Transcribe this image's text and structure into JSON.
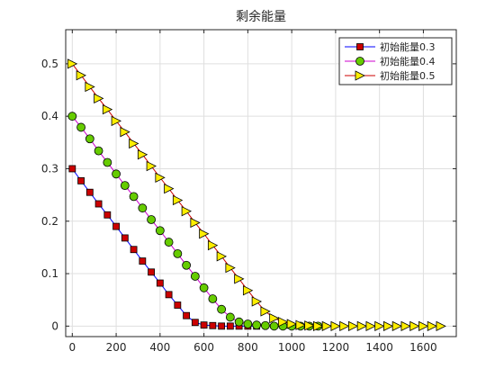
{
  "chart_data": {
    "type": "line",
    "title": "剩余能量",
    "xlabel": "",
    "ylabel": "",
    "xlim": [
      -30,
      1750
    ],
    "ylim": [
      -0.02,
      0.565
    ],
    "xticks": [
      0,
      200,
      400,
      600,
      800,
      1000,
      1200,
      1400,
      1600
    ],
    "yticks": [
      0,
      0.1,
      0.2,
      0.3,
      0.4,
      0.5
    ],
    "grid": true,
    "legend_position": "top-right",
    "series": [
      {
        "name": "初始能量0.3",
        "line_color": "#0000ff",
        "marker": "square",
        "marker_fill": "#cc0000",
        "x": [
          0,
          40,
          80,
          120,
          160,
          200,
          240,
          280,
          320,
          360,
          400,
          440,
          480,
          520,
          560,
          600,
          640,
          680,
          720,
          760,
          800,
          840
        ],
        "y": [
          0.3,
          0.277,
          0.255,
          0.233,
          0.212,
          0.19,
          0.168,
          0.146,
          0.124,
          0.103,
          0.082,
          0.06,
          0.04,
          0.02,
          0.007,
          0.002,
          0.001,
          0.0,
          0.0,
          0.0,
          0.0,
          0.0
        ]
      },
      {
        "name": "初始能量0.4",
        "line_color": "#cc00cc",
        "marker": "circle",
        "marker_fill": "#66cc00",
        "x": [
          0,
          40,
          80,
          120,
          160,
          200,
          240,
          280,
          320,
          360,
          400,
          440,
          480,
          520,
          560,
          600,
          640,
          680,
          720,
          760,
          800,
          840,
          880,
          920,
          960,
          1000,
          1040,
          1080,
          1120
        ],
        "y": [
          0.4,
          0.379,
          0.357,
          0.334,
          0.312,
          0.29,
          0.268,
          0.247,
          0.225,
          0.203,
          0.182,
          0.16,
          0.138,
          0.116,
          0.095,
          0.073,
          0.052,
          0.032,
          0.017,
          0.008,
          0.004,
          0.002,
          0.001,
          0.0,
          0.0,
          0.0,
          0.0,
          0.0,
          0.0
        ]
      },
      {
        "name": "初始能量0.5",
        "line_color": "#cc0000",
        "marker": "triangle-right",
        "marker_fill": "#ffee00",
        "x": [
          0,
          40,
          80,
          120,
          160,
          200,
          240,
          280,
          320,
          360,
          400,
          440,
          480,
          520,
          560,
          600,
          640,
          680,
          720,
          760,
          800,
          840,
          880,
          920,
          960,
          1000,
          1040,
          1080,
          1120,
          1160,
          1200,
          1240,
          1280,
          1320,
          1360,
          1400,
          1440,
          1480,
          1520,
          1560,
          1600,
          1640,
          1680
        ],
        "y": [
          0.5,
          0.478,
          0.456,
          0.434,
          0.413,
          0.391,
          0.37,
          0.348,
          0.327,
          0.305,
          0.283,
          0.262,
          0.24,
          0.219,
          0.197,
          0.176,
          0.154,
          0.133,
          0.111,
          0.09,
          0.068,
          0.047,
          0.028,
          0.015,
          0.008,
          0.004,
          0.002,
          0.001,
          0.0,
          0.0,
          0.0,
          0.0,
          0.0,
          0.0,
          0.0,
          0.0,
          0.0,
          0.0,
          0.0,
          0.0,
          0.0,
          0.0,
          0.0
        ]
      }
    ]
  }
}
